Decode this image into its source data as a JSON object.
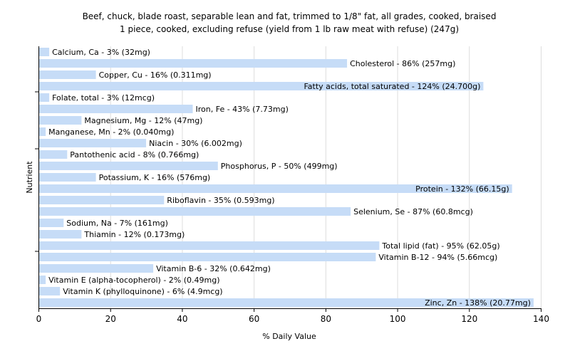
{
  "chart_data": {
    "type": "bar",
    "orientation": "horizontal",
    "title": "Beef, chuck, blade roast, separable lean and fat, trimmed to 1/8\" fat, all grades, cooked, braised",
    "subtitle": "1 piece, cooked, excluding refuse (yield from 1 lb raw meat with refuse) (247g)",
    "xlabel": "% Daily Value",
    "ylabel": "Nutrient",
    "xlim": [
      0,
      140
    ],
    "xticks": [
      0,
      20,
      40,
      60,
      80,
      100,
      120,
      140
    ],
    "grid": true,
    "bar_color": "#c6dcf7",
    "categories": [
      "Calcium, Ca",
      "Cholesterol",
      "Copper, Cu",
      "Fatty acids, total saturated",
      "Folate, total",
      "Iron, Fe",
      "Magnesium, Mg",
      "Manganese, Mn",
      "Niacin",
      "Pantothenic acid",
      "Phosphorus, P",
      "Potassium, K",
      "Protein",
      "Riboflavin",
      "Selenium, Se",
      "Sodium, Na",
      "Thiamin",
      "Total lipid (fat)",
      "Vitamin B-12",
      "Vitamin B-6",
      "Vitamin E (alpha-tocopherol)",
      "Vitamin K (phylloquinone)",
      "Zinc, Zn"
    ],
    "values": [
      3,
      86,
      16,
      124,
      3,
      43,
      12,
      2,
      30,
      8,
      50,
      16,
      132,
      35,
      87,
      7,
      12,
      95,
      94,
      32,
      2,
      6,
      138
    ],
    "labels": [
      "Calcium, Ca - 3% (32mg)",
      "Cholesterol - 86% (257mg)",
      "Copper, Cu - 16% (0.311mg)",
      "Fatty acids, total saturated - 124% (24.700g)",
      "Folate, total - 3% (12mcg)",
      "Iron, Fe - 43% (7.73mg)",
      "Magnesium, Mg - 12% (47mg)",
      "Manganese, Mn - 2% (0.040mg)",
      "Niacin - 30% (6.002mg)",
      "Pantothenic acid - 8% (0.766mg)",
      "Phosphorus, P - 50% (499mg)",
      "Potassium, K - 16% (576mg)",
      "Protein - 132% (66.15g)",
      "Riboflavin - 35% (0.593mg)",
      "Selenium, Se - 87% (60.8mcg)",
      "Sodium, Na - 7% (161mg)",
      "Thiamin - 12% (0.173mg)",
      "Total lipid (fat) - 95% (62.05g)",
      "Vitamin B-12 - 94% (5.66mcg)",
      "Vitamin B-6 - 32% (0.642mg)",
      "Vitamin E (alpha-tocopherol) - 2% (0.49mg)",
      "Vitamin K (phylloquinone) - 6% (4.9mcg)",
      "Zinc, Zn - 138% (20.77mg)"
    ]
  }
}
